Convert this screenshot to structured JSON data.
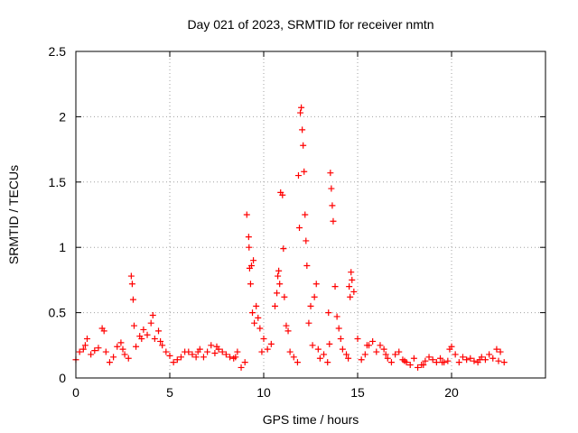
{
  "chart_data": {
    "type": "scatter",
    "title": "Day 021 of 2023, SRMTID for receiver nmtn",
    "xlabel": "GPS time / hours",
    "ylabel": "SRMTID / TECUs",
    "xlim": [
      0,
      25
    ],
    "ylim": [
      0,
      2.5
    ],
    "x_ticks": [
      0,
      5,
      10,
      15,
      20
    ],
    "x_tick_labels": [
      "0",
      "5",
      "10",
      "15",
      "20"
    ],
    "y_ticks": [
      0,
      0.5,
      1,
      1.5,
      2,
      2.5
    ],
    "y_tick_labels": [
      "0",
      "0.5",
      "1",
      "1.5",
      "2",
      "2.5"
    ],
    "grid": true,
    "marker": "+",
    "series": [
      {
        "name": "SRMTID",
        "color": "#ff0000",
        "x": [
          0.0,
          0.2,
          0.4,
          0.6,
          0.8,
          1.0,
          1.2,
          1.4,
          1.6,
          1.8,
          2.0,
          2.2,
          2.4,
          2.6,
          2.8,
          2.95,
          3.0,
          3.05,
          3.1,
          3.2,
          3.4,
          3.6,
          3.8,
          4.0,
          4.2,
          4.4,
          4.6,
          4.8,
          5.0,
          5.2,
          5.4,
          5.6,
          5.8,
          6.0,
          6.2,
          6.4,
          6.6,
          6.8,
          7.0,
          7.2,
          7.4,
          7.6,
          7.8,
          8.0,
          8.2,
          8.4,
          8.6,
          8.8,
          9.0,
          9.1,
          9.2,
          9.25,
          9.3,
          9.35,
          9.4,
          9.5,
          9.6,
          9.7,
          9.8,
          9.9,
          10.0,
          10.2,
          10.4,
          10.6,
          10.7,
          10.8,
          10.85,
          10.9,
          11.0,
          11.05,
          11.1,
          11.2,
          11.3,
          11.4,
          11.6,
          11.8,
          11.9,
          11.95,
          12.0,
          12.05,
          12.1,
          12.15,
          12.2,
          12.3,
          12.4,
          12.5,
          12.6,
          12.7,
          12.8,
          12.9,
          13.0,
          13.2,
          13.4,
          13.5,
          13.55,
          13.6,
          13.65,
          13.7,
          13.8,
          13.9,
          14.0,
          14.1,
          14.2,
          14.4,
          14.5,
          14.6,
          14.65,
          14.7,
          14.8,
          15.0,
          15.2,
          15.4,
          15.6,
          15.8,
          16.0,
          16.2,
          16.4,
          16.6,
          16.8,
          17.0,
          17.2,
          17.4,
          17.6,
          17.8,
          18.0,
          18.2,
          18.4,
          18.6,
          18.8,
          19.0,
          19.2,
          19.4,
          19.6,
          19.8,
          19.9,
          20.0,
          20.2,
          20.4,
          20.6,
          20.8,
          21.0,
          21.2,
          21.4,
          21.6,
          21.8,
          22.0,
          22.2,
          22.4,
          22.6,
          22.8,
          0.5,
          1.5,
          2.5,
          3.5,
          4.1,
          4.5,
          6.5,
          7.5,
          8.5,
          9.22,
          9.45,
          10.75,
          11.85,
          12.25,
          13.45,
          14.55,
          15.5,
          16.5,
          17.5,
          18.5,
          19.5,
          21.5,
          22.5
        ],
        "y": [
          0.14,
          0.2,
          0.22,
          0.3,
          0.18,
          0.21,
          0.23,
          0.38,
          0.2,
          0.12,
          0.16,
          0.24,
          0.27,
          0.18,
          0.15,
          0.78,
          0.72,
          0.6,
          0.4,
          0.24,
          0.32,
          0.37,
          0.33,
          0.42,
          0.3,
          0.36,
          0.25,
          0.2,
          0.17,
          0.12,
          0.14,
          0.16,
          0.2,
          0.2,
          0.18,
          0.16,
          0.22,
          0.16,
          0.2,
          0.25,
          0.19,
          0.22,
          0.2,
          0.18,
          0.16,
          0.15,
          0.2,
          0.08,
          0.12,
          1.25,
          1.08,
          0.84,
          0.72,
          0.86,
          0.5,
          0.42,
          0.55,
          0.46,
          0.38,
          0.2,
          0.3,
          0.22,
          0.26,
          0.55,
          0.65,
          0.82,
          0.72,
          1.42,
          1.4,
          0.99,
          0.62,
          0.4,
          0.36,
          0.2,
          0.16,
          0.12,
          1.15,
          2.03,
          2.07,
          1.9,
          1.78,
          1.58,
          1.25,
          0.86,
          0.42,
          0.55,
          0.25,
          0.62,
          0.72,
          0.22,
          0.15,
          0.18,
          0.12,
          0.26,
          1.57,
          1.45,
          1.32,
          1.2,
          0.7,
          0.47,
          0.38,
          0.3,
          0.22,
          0.18,
          0.15,
          0.62,
          0.81,
          0.75,
          0.66,
          0.3,
          0.14,
          0.18,
          0.25,
          0.28,
          0.2,
          0.25,
          0.22,
          0.15,
          0.12,
          0.18,
          0.2,
          0.14,
          0.12,
          0.1,
          0.15,
          0.08,
          0.1,
          0.13,
          0.16,
          0.14,
          0.12,
          0.15,
          0.12,
          0.13,
          0.22,
          0.24,
          0.18,
          0.12,
          0.16,
          0.14,
          0.15,
          0.13,
          0.12,
          0.16,
          0.14,
          0.18,
          0.15,
          0.22,
          0.2,
          0.12,
          0.25,
          0.36,
          0.22,
          0.3,
          0.48,
          0.28,
          0.2,
          0.24,
          0.16,
          1.0,
          0.9,
          0.78,
          1.55,
          1.05,
          0.5,
          0.7,
          0.25,
          0.18,
          0.13,
          0.1,
          0.12,
          0.14,
          0.13
        ]
      }
    ]
  }
}
